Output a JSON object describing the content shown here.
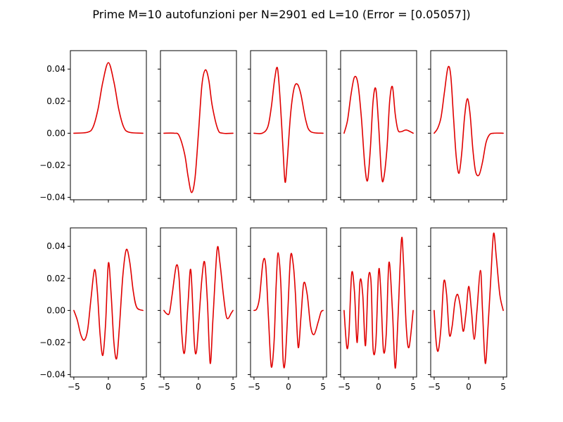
{
  "chart_data": {
    "type": "line",
    "title": "Prime M=10 autofunzioni per N=2901 ed L=10 (Error = [0.05057])",
    "layout": {
      "rows": 2,
      "cols": 5,
      "sharex": true,
      "sharey": true
    },
    "xlim": [
      -5.5,
      5.5
    ],
    "ylim": [
      -0.0415,
      0.0515
    ],
    "x_ticks": [
      -5,
      0,
      5
    ],
    "x_tick_labels": [
      "−5",
      "0",
      "5"
    ],
    "y_ticks": [
      0.04,
      0.02,
      0.0,
      -0.02,
      -0.04
    ],
    "y_tick_labels": [
      "0.04",
      "0.02",
      "0.00",
      "−0.02",
      "−0.04"
    ],
    "line_color": "#e00000",
    "panels": [
      {
        "points": [
          [
            -5,
            0
          ],
          [
            -3,
            0.0006
          ],
          [
            -2.2,
            0.004
          ],
          [
            -1.5,
            0.015
          ],
          [
            -0.8,
            0.032
          ],
          [
            0,
            0.044
          ],
          [
            0.8,
            0.032
          ],
          [
            1.5,
            0.015
          ],
          [
            2.2,
            0.004
          ],
          [
            3,
            0.0006
          ],
          [
            5,
            0
          ]
        ]
      },
      {
        "points": [
          [
            -5,
            0
          ],
          [
            -3.5,
            0
          ],
          [
            -2.8,
            -0.0015
          ],
          [
            -2,
            -0.013
          ],
          [
            -1.5,
            -0.027
          ],
          [
            -1,
            -0.037
          ],
          [
            -0.5,
            -0.028
          ],
          [
            0,
            0
          ],
          [
            0.5,
            0.03
          ],
          [
            1,
            0.0395
          ],
          [
            1.5,
            0.033
          ],
          [
            2,
            0.017
          ],
          [
            2.8,
            0.0025
          ],
          [
            3.5,
            0
          ],
          [
            5,
            0
          ]
        ]
      },
      {
        "points": [
          [
            -5,
            0
          ],
          [
            -3.8,
            0
          ],
          [
            -3,
            0.004
          ],
          [
            -2.5,
            0.016
          ],
          [
            -2,
            0.034
          ],
          [
            -1.6,
            0.0405
          ],
          [
            -1.2,
            0.02
          ],
          [
            -0.8,
            -0.01
          ],
          [
            -0.5,
            -0.0305
          ],
          [
            -0.2,
            -0.018
          ],
          [
            0.3,
            0.012
          ],
          [
            0.8,
            0.028
          ],
          [
            1.3,
            0.0305
          ],
          [
            1.8,
            0.024
          ],
          [
            2.5,
            0.008
          ],
          [
            3.2,
            0.001
          ],
          [
            5,
            0
          ]
        ]
      },
      {
        "points": [
          [
            -5,
            0
          ],
          [
            -4.5,
            0.008
          ],
          [
            -4,
            0.024
          ],
          [
            -3.5,
            0.035
          ],
          [
            -3,
            0.031
          ],
          [
            -2.5,
            0.01
          ],
          [
            -2,
            -0.02
          ],
          [
            -1.6,
            -0.0295
          ],
          [
            -1.2,
            -0.01
          ],
          [
            -0.8,
            0.02
          ],
          [
            -0.4,
            0.0275
          ],
          [
            0,
            0.005
          ],
          [
            0.4,
            -0.025
          ],
          [
            0.7,
            -0.029
          ],
          [
            1.2,
            -0.01
          ],
          [
            1.6,
            0.02
          ],
          [
            2,
            0.029
          ],
          [
            2.4,
            0.012
          ],
          [
            2.8,
            0.002
          ],
          [
            3.3,
            0.001
          ],
          [
            4,
            0.002
          ],
          [
            5,
            0
          ]
        ]
      },
      {
        "points": [
          [
            -5,
            0
          ],
          [
            -4.5,
            0.003
          ],
          [
            -4,
            0.01
          ],
          [
            -3.5,
            0.026
          ],
          [
            -3,
            0.041
          ],
          [
            -2.6,
            0.036
          ],
          [
            -2.2,
            0.01
          ],
          [
            -1.8,
            -0.015
          ],
          [
            -1.4,
            -0.025
          ],
          [
            -1,
            -0.012
          ],
          [
            -0.6,
            0.01
          ],
          [
            -0.2,
            0.0215
          ],
          [
            0.2,
            0.012
          ],
          [
            0.6,
            -0.01
          ],
          [
            1,
            -0.024
          ],
          [
            1.5,
            -0.026
          ],
          [
            2,
            -0.018
          ],
          [
            2.5,
            -0.006
          ],
          [
            3,
            -0.001
          ],
          [
            3.6,
            0
          ],
          [
            5,
            0
          ]
        ]
      },
      {
        "points": [
          [
            -5,
            0
          ],
          [
            -4.5,
            -0.006
          ],
          [
            -4,
            -0.015
          ],
          [
            -3.5,
            -0.0185
          ],
          [
            -3,
            -0.012
          ],
          [
            -2.5,
            0.008
          ],
          [
            -2,
            0.0255
          ],
          [
            -1.6,
            0.012
          ],
          [
            -1.2,
            -0.015
          ],
          [
            -0.8,
            -0.028
          ],
          [
            -0.4,
            -0.008
          ],
          [
            0,
            0.0295
          ],
          [
            0.4,
            0.01
          ],
          [
            0.8,
            -0.02
          ],
          [
            1.2,
            -0.03
          ],
          [
            1.6,
            -0.01
          ],
          [
            2.1,
            0.022
          ],
          [
            2.6,
            0.038
          ],
          [
            3.1,
            0.03
          ],
          [
            3.6,
            0.012
          ],
          [
            4.1,
            0.002
          ],
          [
            5,
            0
          ]
        ]
      },
      {
        "points": [
          [
            -5,
            0
          ],
          [
            -4.6,
            -0.002
          ],
          [
            -4.2,
            -0.0015
          ],
          [
            -3.8,
            0.01
          ],
          [
            -3.2,
            0.028
          ],
          [
            -2.8,
            0.02
          ],
          [
            -2.4,
            -0.015
          ],
          [
            -2,
            -0.026
          ],
          [
            -1.5,
            0.005
          ],
          [
            -1.1,
            0.025
          ],
          [
            -0.6,
            -0.02
          ],
          [
            -0.3,
            -0.026
          ],
          [
            0,
            -0.01
          ],
          [
            0.5,
            0.02
          ],
          [
            0.9,
            0.03
          ],
          [
            1.3,
            0.005
          ],
          [
            1.7,
            -0.033
          ],
          [
            2.1,
            -0.005
          ],
          [
            2.7,
            0.038
          ],
          [
            3.1,
            0.03
          ],
          [
            3.6,
            0.01
          ],
          [
            4,
            -0.003
          ],
          [
            4.3,
            -0.005
          ],
          [
            4.7,
            -0.002
          ],
          [
            5,
            0
          ]
        ]
      },
      {
        "points": [
          [
            -5,
            0
          ],
          [
            -4.6,
            0.001
          ],
          [
            -4.2,
            0.008
          ],
          [
            -3.7,
            0.03
          ],
          [
            -3.3,
            0.028
          ],
          [
            -2.9,
            -0.005
          ],
          [
            -2.5,
            -0.035
          ],
          [
            -2.1,
            -0.02
          ],
          [
            -1.8,
            0.015
          ],
          [
            -1.5,
            0.036
          ],
          [
            -1.1,
            0.015
          ],
          [
            -0.8,
            -0.03
          ],
          [
            -0.5,
            -0.032
          ],
          [
            -0.1,
            0.0
          ],
          [
            0.3,
            0.034
          ],
          [
            0.7,
            0.028
          ],
          [
            1,
            0.01
          ],
          [
            1.4,
            -0.023
          ],
          [
            1.8,
            -0.004
          ],
          [
            2.2,
            0.017
          ],
          [
            2.7,
            0.01
          ],
          [
            3.2,
            -0.01
          ],
          [
            3.7,
            -0.015
          ],
          [
            4.3,
            -0.007
          ],
          [
            4.7,
            -0.001
          ],
          [
            5,
            0
          ]
        ]
      },
      {
        "points": [
          [
            -5,
            0
          ],
          [
            -4.6,
            -0.023
          ],
          [
            -4.3,
            -0.015
          ],
          [
            -3.9,
            0.023
          ],
          [
            -3.5,
            0.012
          ],
          [
            -3.1,
            -0.02
          ],
          [
            -2.7,
            0.018
          ],
          [
            -2.3,
            0.01
          ],
          [
            -1.9,
            -0.022
          ],
          [
            -1.5,
            0.019
          ],
          [
            -1.1,
            0.018
          ],
          [
            -0.8,
            -0.024
          ],
          [
            -0.4,
            -0.02
          ],
          [
            0,
            0.0245
          ],
          [
            0.3,
            0.013
          ],
          [
            0.7,
            -0.025
          ],
          [
            1.1,
            -0.015
          ],
          [
            1.5,
            0.03
          ],
          [
            2,
            0.0
          ],
          [
            2.4,
            -0.036
          ],
          [
            2.8,
            -0.005
          ],
          [
            3.3,
            0.044
          ],
          [
            3.6,
            0.03
          ],
          [
            4,
            -0.01
          ],
          [
            4.4,
            -0.023
          ],
          [
            5,
            0
          ]
        ]
      },
      {
        "points": [
          [
            -5,
            0
          ],
          [
            -4.7,
            -0.02
          ],
          [
            -4.4,
            -0.025
          ],
          [
            -4,
            -0.01
          ],
          [
            -3.6,
            0.018
          ],
          [
            -3.2,
            0.01
          ],
          [
            -2.8,
            -0.015
          ],
          [
            -2.4,
            -0.01
          ],
          [
            -2,
            0.005
          ],
          [
            -1.6,
            0.01
          ],
          [
            -1.2,
            0.002
          ],
          [
            -0.8,
            -0.013
          ],
          [
            -0.4,
            -0.002
          ],
          [
            0,
            0.015
          ],
          [
            0.4,
            0.0
          ],
          [
            0.8,
            -0.018
          ],
          [
            1.2,
            0.0
          ],
          [
            1.7,
            0.025
          ],
          [
            2,
            0.0
          ],
          [
            2.4,
            -0.033
          ],
          [
            2.8,
            -0.01
          ],
          [
            3.2,
            0.02
          ],
          [
            3.6,
            0.048
          ],
          [
            4,
            0.033
          ],
          [
            4.5,
            0.01
          ],
          [
            5,
            0
          ]
        ]
      }
    ]
  }
}
